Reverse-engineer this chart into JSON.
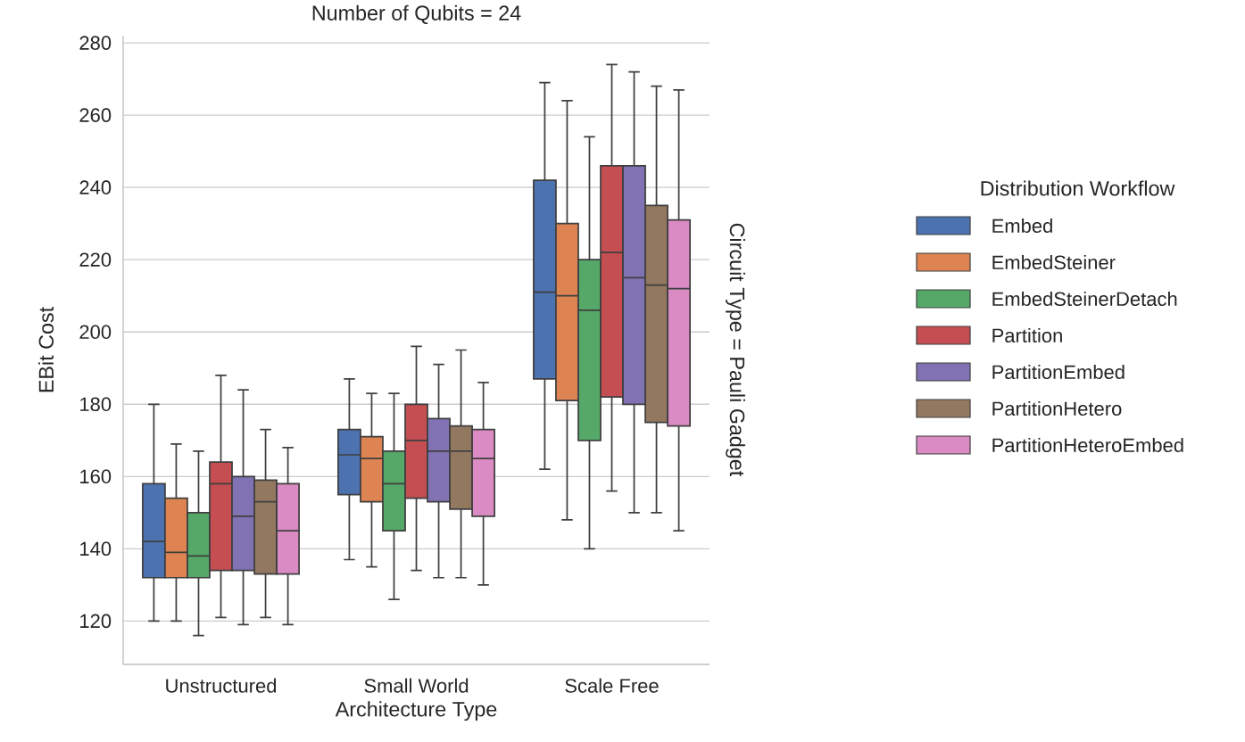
{
  "chart_data": {
    "type": "box",
    "title": "Number of Qubits = 24",
    "xlabel": "Architecture Type",
    "ylabel": "EBit Cost",
    "legend_title": "Distribution Workflow",
    "legend": "right",
    "grid": "y",
    "annotations": [
      "Circuit Type = Pauli Gadget"
    ],
    "categories": [
      "Unstructured",
      "Small World",
      "Scale Free"
    ],
    "ylim": [
      108,
      282
    ],
    "yticks": [
      120,
      140,
      160,
      180,
      200,
      220,
      240,
      260,
      280
    ],
    "series": [
      {
        "name": "Embed",
        "color": "#4c72b0",
        "boxes": [
          {
            "low": 120,
            "q1": 132,
            "median": 142,
            "q3": 158,
            "high": 180
          },
          {
            "low": 137,
            "q1": 155,
            "median": 166,
            "q3": 173,
            "high": 187
          },
          {
            "low": 162,
            "q1": 187,
            "median": 211,
            "q3": 242,
            "high": 269
          }
        ]
      },
      {
        "name": "EmbedSteiner",
        "color": "#dd8452",
        "boxes": [
          {
            "low": 120,
            "q1": 132,
            "median": 139,
            "q3": 154,
            "high": 169
          },
          {
            "low": 135,
            "q1": 153,
            "median": 165,
            "q3": 171,
            "high": 183
          },
          {
            "low": 148,
            "q1": 181,
            "median": 210,
            "q3": 230,
            "high": 264
          }
        ]
      },
      {
        "name": "EmbedSteinerDetach",
        "color": "#55a868",
        "boxes": [
          {
            "low": 116,
            "q1": 132,
            "median": 138,
            "q3": 150,
            "high": 167
          },
          {
            "low": 126,
            "q1": 145,
            "median": 158,
            "q3": 167,
            "high": 183
          },
          {
            "low": 140,
            "q1": 170,
            "median": 206,
            "q3": 220,
            "high": 254
          }
        ]
      },
      {
        "name": "Partition",
        "color": "#c44e52",
        "boxes": [
          {
            "low": 121,
            "q1": 134,
            "median": 158,
            "q3": 164,
            "high": 188
          },
          {
            "low": 134,
            "q1": 154,
            "median": 170,
            "q3": 180,
            "high": 196
          },
          {
            "low": 156,
            "q1": 182,
            "median": 222,
            "q3": 246,
            "high": 274
          }
        ]
      },
      {
        "name": "PartitionEmbed",
        "color": "#8172b3",
        "boxes": [
          {
            "low": 119,
            "q1": 134,
            "median": 149,
            "q3": 160,
            "high": 184
          },
          {
            "low": 132,
            "q1": 153,
            "median": 167,
            "q3": 176,
            "high": 191
          },
          {
            "low": 150,
            "q1": 180,
            "median": 215,
            "q3": 246,
            "high": 272
          }
        ]
      },
      {
        "name": "PartitionHetero",
        "color": "#937860",
        "boxes": [
          {
            "low": 121,
            "q1": 133,
            "median": 153,
            "q3": 159,
            "high": 173
          },
          {
            "low": 132,
            "q1": 151,
            "median": 167,
            "q3": 174,
            "high": 195
          },
          {
            "low": 150,
            "q1": 175,
            "median": 213,
            "q3": 235,
            "high": 268
          }
        ]
      },
      {
        "name": "PartitionHeteroEmbed",
        "color": "#da8bc3",
        "boxes": [
          {
            "low": 119,
            "q1": 133,
            "median": 145,
            "q3": 158,
            "high": 168
          },
          {
            "low": 130,
            "q1": 149,
            "median": 165,
            "q3": 173,
            "high": 186
          },
          {
            "low": 145,
            "q1": 174,
            "median": 212,
            "q3": 231,
            "high": 267
          }
        ]
      }
    ]
  }
}
